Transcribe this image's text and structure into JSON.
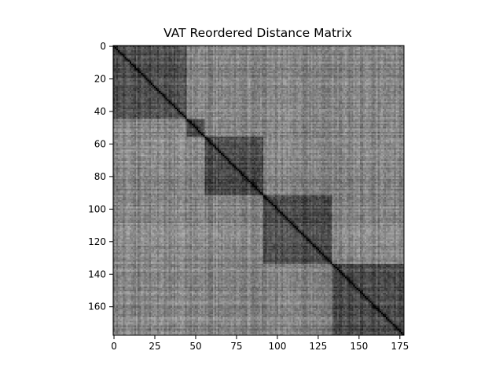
{
  "chart_data": {
    "type": "heatmap",
    "title": "VAT Reordered Distance Matrix",
    "xlabel": "",
    "ylabel": "",
    "size": 178,
    "colormap": "gray",
    "xlim": [
      0,
      178
    ],
    "ylim": [
      178,
      0
    ],
    "x_ticks": [
      0,
      25,
      50,
      75,
      100,
      125,
      150,
      175
    ],
    "y_ticks": [
      0,
      20,
      40,
      60,
      80,
      100,
      120,
      140,
      160
    ],
    "x_tick_labels": [
      "0",
      "25",
      "50",
      "75",
      "100",
      "125",
      "150",
      "175"
    ],
    "y_tick_labels": [
      "0",
      "20",
      "40",
      "60",
      "80",
      "100",
      "120",
      "140",
      "160"
    ],
    "clusters": [
      {
        "start": 0,
        "end": 45
      },
      {
        "start": 45,
        "end": 56
      },
      {
        "start": 56,
        "end": 92
      },
      {
        "start": 92,
        "end": 134
      },
      {
        "start": 134,
        "end": 178
      }
    ],
    "diagonal_value": 0,
    "legend": "none",
    "grid": false
  }
}
